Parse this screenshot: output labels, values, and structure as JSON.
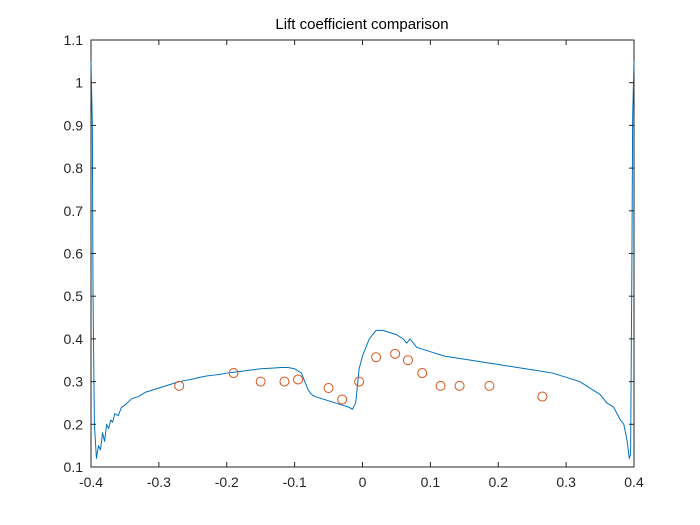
{
  "chart_data": {
    "type": "line",
    "title": "Lift coefficient comparison",
    "xlabel": "",
    "ylabel": "",
    "xlim": [
      -0.4,
      0.4
    ],
    "ylim": [
      0.1,
      1.1
    ],
    "x_ticks": [
      "-0.4",
      "-0.3",
      "-0.2",
      "-0.1",
      "0",
      "0.1",
      "0.2",
      "0.3",
      "0.4"
    ],
    "y_ticks": [
      "0.1",
      "0.2",
      "0.3",
      "0.4",
      "0.5",
      "0.6",
      "0.7",
      "0.8",
      "0.9",
      "1",
      "1.1"
    ],
    "grid": false,
    "legend": "none",
    "series": [
      {
        "style": "line",
        "color": "#0072BD",
        "x": [
          -0.4,
          -0.398,
          -0.397,
          -0.395,
          -0.392,
          -0.389,
          -0.386,
          -0.383,
          -0.38,
          -0.377,
          -0.374,
          -0.371,
          -0.368,
          -0.365,
          -0.36,
          -0.355,
          -0.35,
          -0.34,
          -0.33,
          -0.32,
          -0.31,
          -0.3,
          -0.29,
          -0.28,
          -0.27,
          -0.26,
          -0.25,
          -0.24,
          -0.23,
          -0.22,
          -0.21,
          -0.2,
          -0.19,
          -0.18,
          -0.17,
          -0.16,
          -0.15,
          -0.14,
          -0.13,
          -0.12,
          -0.11,
          -0.1,
          -0.09,
          -0.08,
          -0.075,
          -0.07,
          -0.06,
          -0.05,
          -0.04,
          -0.03,
          -0.02,
          -0.015,
          -0.01,
          -0.005,
          0.0,
          0.005,
          0.01,
          0.015,
          0.02,
          0.03,
          0.04,
          0.05,
          0.06,
          0.065,
          0.07,
          0.08,
          0.1,
          0.12,
          0.14,
          0.16,
          0.18,
          0.2,
          0.22,
          0.24,
          0.26,
          0.28,
          0.3,
          0.32,
          0.34,
          0.35,
          0.36,
          0.37,
          0.38,
          0.385,
          0.39,
          0.393,
          0.395,
          0.397,
          0.398,
          0.4
        ],
        "y": [
          1.05,
          0.9,
          0.5,
          0.2,
          0.12,
          0.15,
          0.14,
          0.18,
          0.16,
          0.2,
          0.19,
          0.21,
          0.205,
          0.225,
          0.22,
          0.24,
          0.245,
          0.26,
          0.265,
          0.275,
          0.28,
          0.285,
          0.29,
          0.295,
          0.3,
          0.303,
          0.306,
          0.31,
          0.313,
          0.315,
          0.317,
          0.32,
          0.322,
          0.324,
          0.326,
          0.328,
          0.33,
          0.331,
          0.332,
          0.333,
          0.333,
          0.33,
          0.32,
          0.28,
          0.27,
          0.265,
          0.26,
          0.255,
          0.25,
          0.245,
          0.24,
          0.235,
          0.25,
          0.33,
          0.36,
          0.38,
          0.4,
          0.41,
          0.42,
          0.42,
          0.415,
          0.41,
          0.4,
          0.39,
          0.4,
          0.38,
          0.37,
          0.36,
          0.355,
          0.35,
          0.345,
          0.34,
          0.335,
          0.33,
          0.325,
          0.32,
          0.31,
          0.3,
          0.28,
          0.27,
          0.25,
          0.24,
          0.21,
          0.2,
          0.16,
          0.12,
          0.13,
          0.6,
          0.92,
          1.05
        ]
      },
      {
        "style": "markers",
        "color": "#D95319",
        "x": [
          -0.27,
          -0.19,
          -0.15,
          -0.115,
          -0.095,
          -0.05,
          -0.03,
          -0.005,
          0.02,
          0.048,
          0.067,
          0.088,
          0.115,
          0.143,
          0.187,
          0.265
        ],
        "y": [
          0.29,
          0.32,
          0.3,
          0.3,
          0.305,
          0.285,
          0.258,
          0.3,
          0.357,
          0.365,
          0.35,
          0.32,
          0.29,
          0.29,
          0.29,
          0.265
        ]
      }
    ]
  }
}
